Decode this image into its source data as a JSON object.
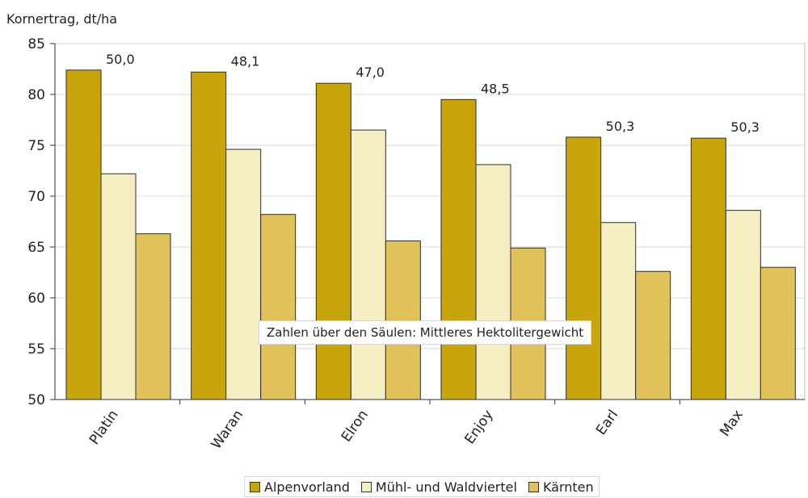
{
  "chart_data": {
    "type": "bar",
    "title": "",
    "xlabel": "",
    "ylabel": "Kornertrag, dt/ha",
    "ylim": [
      50,
      85
    ],
    "yticks": [
      50,
      55,
      60,
      65,
      70,
      75,
      80,
      85
    ],
    "categories": [
      "Platin",
      "Waran",
      "Elron",
      "Enjoy",
      "Earl",
      "Max"
    ],
    "series": [
      {
        "name": "Alpenvorland",
        "values": [
          82.4,
          82.2,
          81.1,
          79.5,
          75.8,
          75.7
        ],
        "color": "#c8a50a"
      },
      {
        "name": "Mühl- und Waldviertel",
        "values": [
          72.2,
          74.6,
          76.5,
          73.1,
          67.4,
          68.6
        ],
        "color": "#f5eec2"
      },
      {
        "name": "Kärnten",
        "values": [
          66.3,
          68.2,
          65.6,
          64.9,
          62.6,
          63.0
        ],
        "color": "#e0c15a"
      }
    ],
    "bar_labels": [
      "50,0",
      "48,1",
      "47,0",
      "48,5",
      "50,3",
      "50,3"
    ],
    "annotation": "Zahlen über den Säulen: Mittleres Hektolitergewicht",
    "grid": true,
    "legend_position": "bottom"
  }
}
